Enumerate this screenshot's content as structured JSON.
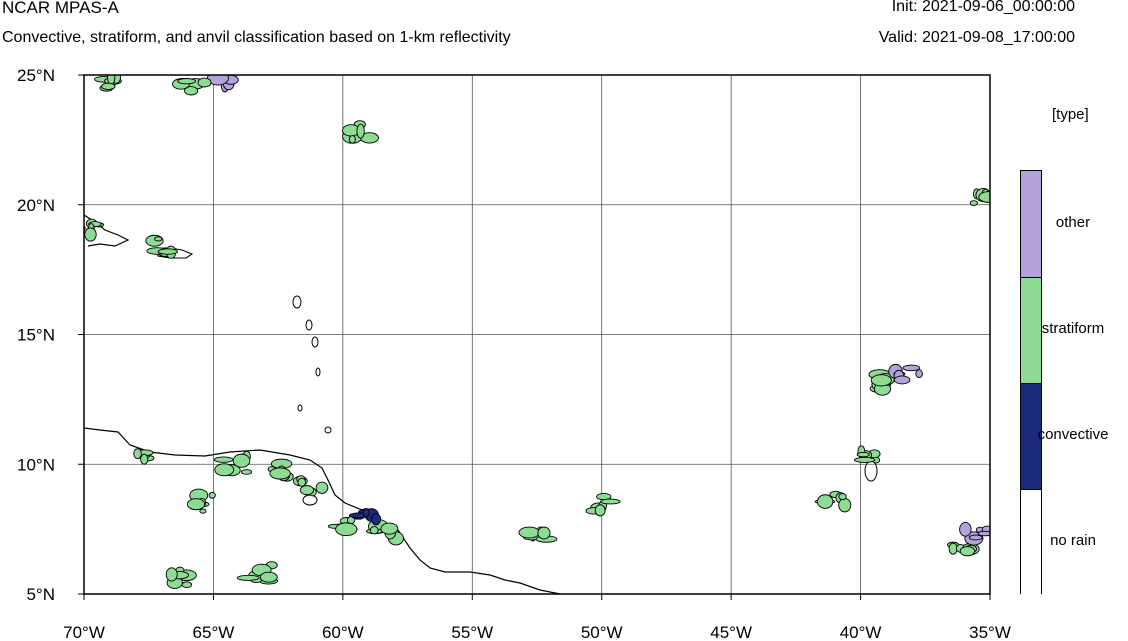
{
  "header": {
    "title": "NCAR MPAS-A",
    "subtitle": "Convective, stratiform, and anvil classification based on 1-km reflectivity",
    "init": "Init: 2021-09-06_00:00:00",
    "valid": "Valid: 2021-09-08_17:00:00"
  },
  "map": {
    "lat_range": [
      5,
      25
    ],
    "lon_range": [
      -70,
      -35
    ],
    "lat_ticks": [
      {
        "value": 25,
        "label": "25°N"
      },
      {
        "value": 20,
        "label": "20°N"
      },
      {
        "value": 15,
        "label": "15°N"
      },
      {
        "value": 10,
        "label": "10°N"
      },
      {
        "value": 5,
        "label": "5°N"
      }
    ],
    "lon_ticks": [
      {
        "value": -70,
        "label": "70°W"
      },
      {
        "value": -65,
        "label": "65°W"
      },
      {
        "value": -60,
        "label": "60°W"
      },
      {
        "value": -55,
        "label": "55°W"
      },
      {
        "value": -50,
        "label": "50°W"
      },
      {
        "value": -45,
        "label": "45°W"
      },
      {
        "value": -40,
        "label": "40°W"
      },
      {
        "value": -35,
        "label": "35°W"
      }
    ],
    "grid": true,
    "colors": {
      "other": "#b4a3db",
      "stratiform": "#8edb94",
      "convective": "#1b2a7a",
      "no_rain": "#ffffff",
      "outline": "#000000"
    },
    "rain_regions": [
      {
        "lon": -64.5,
        "lat": 24.6,
        "type": "other"
      },
      {
        "lon": -68.8,
        "lat": 24.8,
        "type": "stratiform"
      },
      {
        "lon": -65.8,
        "lat": 24.6,
        "type": "stratiform"
      },
      {
        "lon": -59.4,
        "lat": 22.8,
        "type": "stratiform"
      },
      {
        "lon": -66.8,
        "lat": 18.4,
        "type": "stratiform"
      },
      {
        "lon": -69.7,
        "lat": 19.0,
        "type": "stratiform"
      },
      {
        "lon": -35.2,
        "lat": 20.3,
        "type": "stratiform"
      },
      {
        "lon": -39.2,
        "lat": 13.2,
        "type": "stratiform"
      },
      {
        "lon": -38.2,
        "lat": 13.5,
        "type": "other"
      },
      {
        "lon": -39.8,
        "lat": 10.2,
        "type": "stratiform"
      },
      {
        "lon": -41.0,
        "lat": 8.7,
        "type": "stratiform"
      },
      {
        "lon": -36.2,
        "lat": 6.8,
        "type": "stratiform"
      },
      {
        "lon": -35.5,
        "lat": 7.4,
        "type": "other"
      },
      {
        "lon": -59.8,
        "lat": 7.6,
        "type": "stratiform"
      },
      {
        "lon": -58.3,
        "lat": 7.3,
        "type": "stratiform"
      },
      {
        "lon": -61.2,
        "lat": 9.2,
        "type": "stratiform"
      },
      {
        "lon": -59.0,
        "lat": 8.0,
        "type": "convective"
      },
      {
        "lon": -52.6,
        "lat": 7.3,
        "type": "stratiform"
      },
      {
        "lon": -49.8,
        "lat": 8.5,
        "type": "stratiform"
      },
      {
        "lon": -65.2,
        "lat": 8.5,
        "type": "stratiform"
      },
      {
        "lon": -66.5,
        "lat": 5.6,
        "type": "stratiform"
      },
      {
        "lon": -63.2,
        "lat": 5.8,
        "type": "stratiform"
      },
      {
        "lon": -67.5,
        "lat": 10.2,
        "type": "stratiform"
      },
      {
        "lon": -62.5,
        "lat": 9.8,
        "type": "stratiform"
      },
      {
        "lon": -64.2,
        "lat": 10.0,
        "type": "stratiform"
      }
    ]
  },
  "legend": {
    "title": "[type]",
    "entries": [
      {
        "label": "other",
        "color": "#b4a3db"
      },
      {
        "label": "stratiform",
        "color": "#8edb94"
      },
      {
        "label": "convective",
        "color": "#1b2a7a"
      },
      {
        "label": "no rain",
        "color": "#ffffff"
      }
    ]
  }
}
